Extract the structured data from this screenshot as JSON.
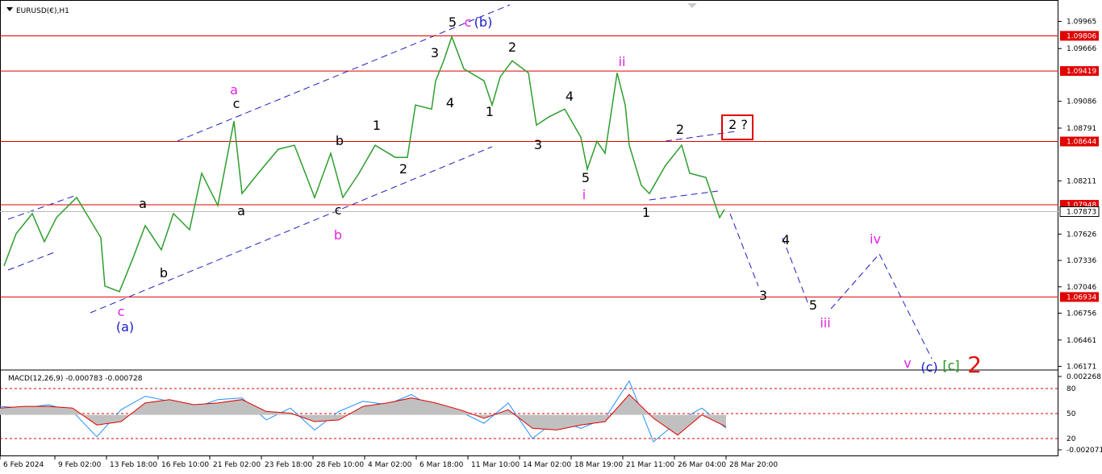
{
  "chart_data": [
    {
      "type": "line",
      "symbol": "EURUSD(€),H1",
      "x": [
        2.5,
        10,
        20,
        27.5,
        35,
        47.5,
        55,
        62.5,
        65,
        74,
        82.5,
        90,
        100,
        107.5,
        117.5,
        125,
        135,
        145,
        150,
        160,
        172.5,
        182.5,
        195,
        205,
        212.5,
        222.5,
        232.5,
        245,
        252.5,
        257.5,
        267.5,
        270,
        275,
        280,
        287.5,
        300,
        305,
        310,
        317.5,
        327.5,
        332.5,
        340,
        350,
        360,
        364,
        370,
        375,
        382.5,
        387.5,
        390,
        397.5,
        402.5,
        412.5,
        422.5,
        427.5,
        437.5,
        446,
        449
      ],
      "series": [
        {
          "color": "#2e9e2e",
          "values": [
            1.07276,
            1.0763,
            1.07851,
            1.07542,
            1.07807,
            1.08028,
            1.07807,
            1.07586,
            1.07055,
            1.06993,
            1.07365,
            1.07719,
            1.07453,
            1.07851,
            1.07674,
            1.08294,
            1.0794,
            1.08868,
            1.08072,
            1.08294,
            1.08559,
            1.08603,
            1.08028,
            1.08515,
            1.08028,
            1.08294,
            1.08603,
            1.0847,
            1.0847,
            1.09045,
            1.09001,
            1.09311,
            1.09532,
            1.09797,
            1.09443,
            1.09311,
            1.09045,
            1.09355,
            1.09532,
            1.09399,
            1.08824,
            1.08913,
            1.09001,
            1.08691,
            1.08338,
            1.08647,
            1.08515,
            1.09399,
            1.09045,
            1.08603,
            1.08161,
            1.08072,
            1.08382,
            1.08603,
            1.08294,
            1.08249,
            1.07807,
            1.07896
          ]
        }
      ],
      "xlim": [
        0,
        656
      ],
      "ylim": [
        1.0614,
        1.102
      ],
      "yticks": [
        1.09965,
        1.09666,
        1.09086,
        1.08791,
        1.08211,
        1.07626,
        1.07336,
        1.07046,
        1.06756,
        1.06461,
        1.06171
      ],
      "xticks": [
        {
          "value": 0,
          "label": "6 Feb 2024"
        },
        {
          "value": 34,
          "label": "9 Feb 02:00"
        },
        {
          "value": 66,
          "label": "13 Feb 18:00"
        },
        {
          "value": 98,
          "label": "16 Feb 10:00"
        },
        {
          "value": 130,
          "label": "21 Feb 02:00"
        },
        {
          "value": 162,
          "label": "23 Feb 18:00"
        },
        {
          "value": 194,
          "label": "28 Feb 10:00"
        },
        {
          "value": 226,
          "label": "4 Mar 02:00"
        },
        {
          "value": 258,
          "label": "6 Mar 18:00"
        },
        {
          "value": 290,
          "label": "11 Mar 10:00"
        },
        {
          "value": 322,
          "label": "14 Mar 02:00"
        },
        {
          "value": 354,
          "label": "18 Mar 19:00"
        },
        {
          "value": 386,
          "label": "21 Mar 11:00"
        },
        {
          "value": 418,
          "label": "26 Mar 04:00"
        },
        {
          "value": 450,
          "label": "28 Mar 20:00"
        }
      ],
      "levels": [
        1.09806,
        1.09419,
        1.08644,
        1.07948,
        1.06934
      ],
      "level_color": "#e00000",
      "current_price": 1.07873,
      "annotations": [
        {
          "text": "5",
          "color": "#000000"
        },
        {
          "text": "c",
          "color": "#e020e0"
        },
        {
          "text": "(b)",
          "color": "#1a1acc"
        },
        {
          "text": "2",
          "color": "#000000"
        },
        {
          "text": "3",
          "color": "#000000"
        },
        {
          "text": "4",
          "color": "#000000"
        },
        {
          "text": "1",
          "color": "#000000"
        },
        {
          "text": "ii",
          "color": "#e020e0"
        },
        {
          "text": "4",
          "color": "#000000"
        },
        {
          "text": "3",
          "color": "#000000"
        },
        {
          "text": "5",
          "color": "#000000"
        },
        {
          "text": "i",
          "color": "#e020e0"
        },
        {
          "text": "2",
          "color": "#000000"
        },
        {
          "text": "2 ?",
          "color": "#000000"
        },
        {
          "text": "1",
          "color": "#000000"
        },
        {
          "text": "a",
          "color": "#e020e0"
        },
        {
          "text": "c",
          "color": "#000000"
        },
        {
          "text": "1",
          "color": "#000000"
        },
        {
          "text": "b",
          "color": "#000000"
        },
        {
          "text": "2",
          "color": "#000000"
        },
        {
          "text": "a",
          "color": "#000000"
        },
        {
          "text": "a",
          "color": "#000000"
        },
        {
          "text": "c",
          "color": "#000000"
        },
        {
          "text": "b",
          "color": "#e020e0"
        },
        {
          "text": "b",
          "color": "#000000"
        },
        {
          "text": "c",
          "color": "#e020e0"
        },
        {
          "text": "(a)",
          "color": "#1a1acc"
        },
        {
          "text": "3",
          "color": "#000000"
        },
        {
          "text": "4",
          "color": "#000000"
        },
        {
          "text": "5",
          "color": "#000000"
        },
        {
          "text": "iii",
          "color": "#e020e0"
        },
        {
          "text": "iv",
          "color": "#e020e0"
        },
        {
          "text": "v",
          "color": "#e020e0"
        },
        {
          "text": "(c)",
          "color": "#1a1acc"
        },
        {
          "text": "[c]",
          "color": "#1a9a1a"
        },
        {
          "text": "2",
          "color": "#e01010"
        }
      ]
    },
    {
      "type": "macd",
      "title": "MACD(12,26,9) -0.000783 -0.000728",
      "x": [
        0,
        15,
        30,
        45,
        60,
        75,
        90,
        105,
        120,
        135,
        150,
        165,
        180,
        195,
        210,
        225,
        240,
        255,
        270,
        285,
        300,
        315,
        330,
        345,
        360,
        375,
        390,
        405,
        420,
        435,
        450
      ],
      "series": [
        {
          "color": "#1e90ff",
          "values": [
            0.0005,
            0.0004,
            0.0006,
            0.0002,
            -0.0013,
            0.0003,
            0.0011,
            0.0008,
            0.0004,
            0.0009,
            0.001,
            -0.0003,
            0.0004,
            -0.0009,
            0.0002,
            0.0008,
            0.0006,
            0.0012,
            0.0003,
            0.0002,
            -0.0005,
            0.0007,
            -0.0014,
            -0.0003,
            -0.0008,
            -0.0002,
            0.002,
            -0.0016,
            -0.0004,
            0.0004,
            -0.0008
          ]
        },
        {
          "color": "#e00000",
          "values": [
            0.0004,
            0.0005,
            0.0005,
            0.0004,
            -0.0006,
            -0.0004,
            0.0007,
            0.0009,
            0.0006,
            0.0007,
            0.0009,
            0.0002,
            0.0001,
            -0.0004,
            -0.0003,
            0.0005,
            0.0007,
            0.001,
            0.0007,
            0.0003,
            -0.0002,
            0.0003,
            -0.0008,
            -0.0009,
            -0.0006,
            -0.0004,
            0.0012,
            -0.0002,
            -0.0012,
            0,
            -0.0007
          ]
        }
      ],
      "xlim": [
        0,
        656
      ],
      "ylim": [
        -0.002452,
        0.002554
      ],
      "yticks": [
        -0.002071,
        0.002268
      ],
      "y2lim": [
        -1.3,
        100.3
      ],
      "y2ticks": [
        20,
        50,
        80
      ]
    }
  ]
}
